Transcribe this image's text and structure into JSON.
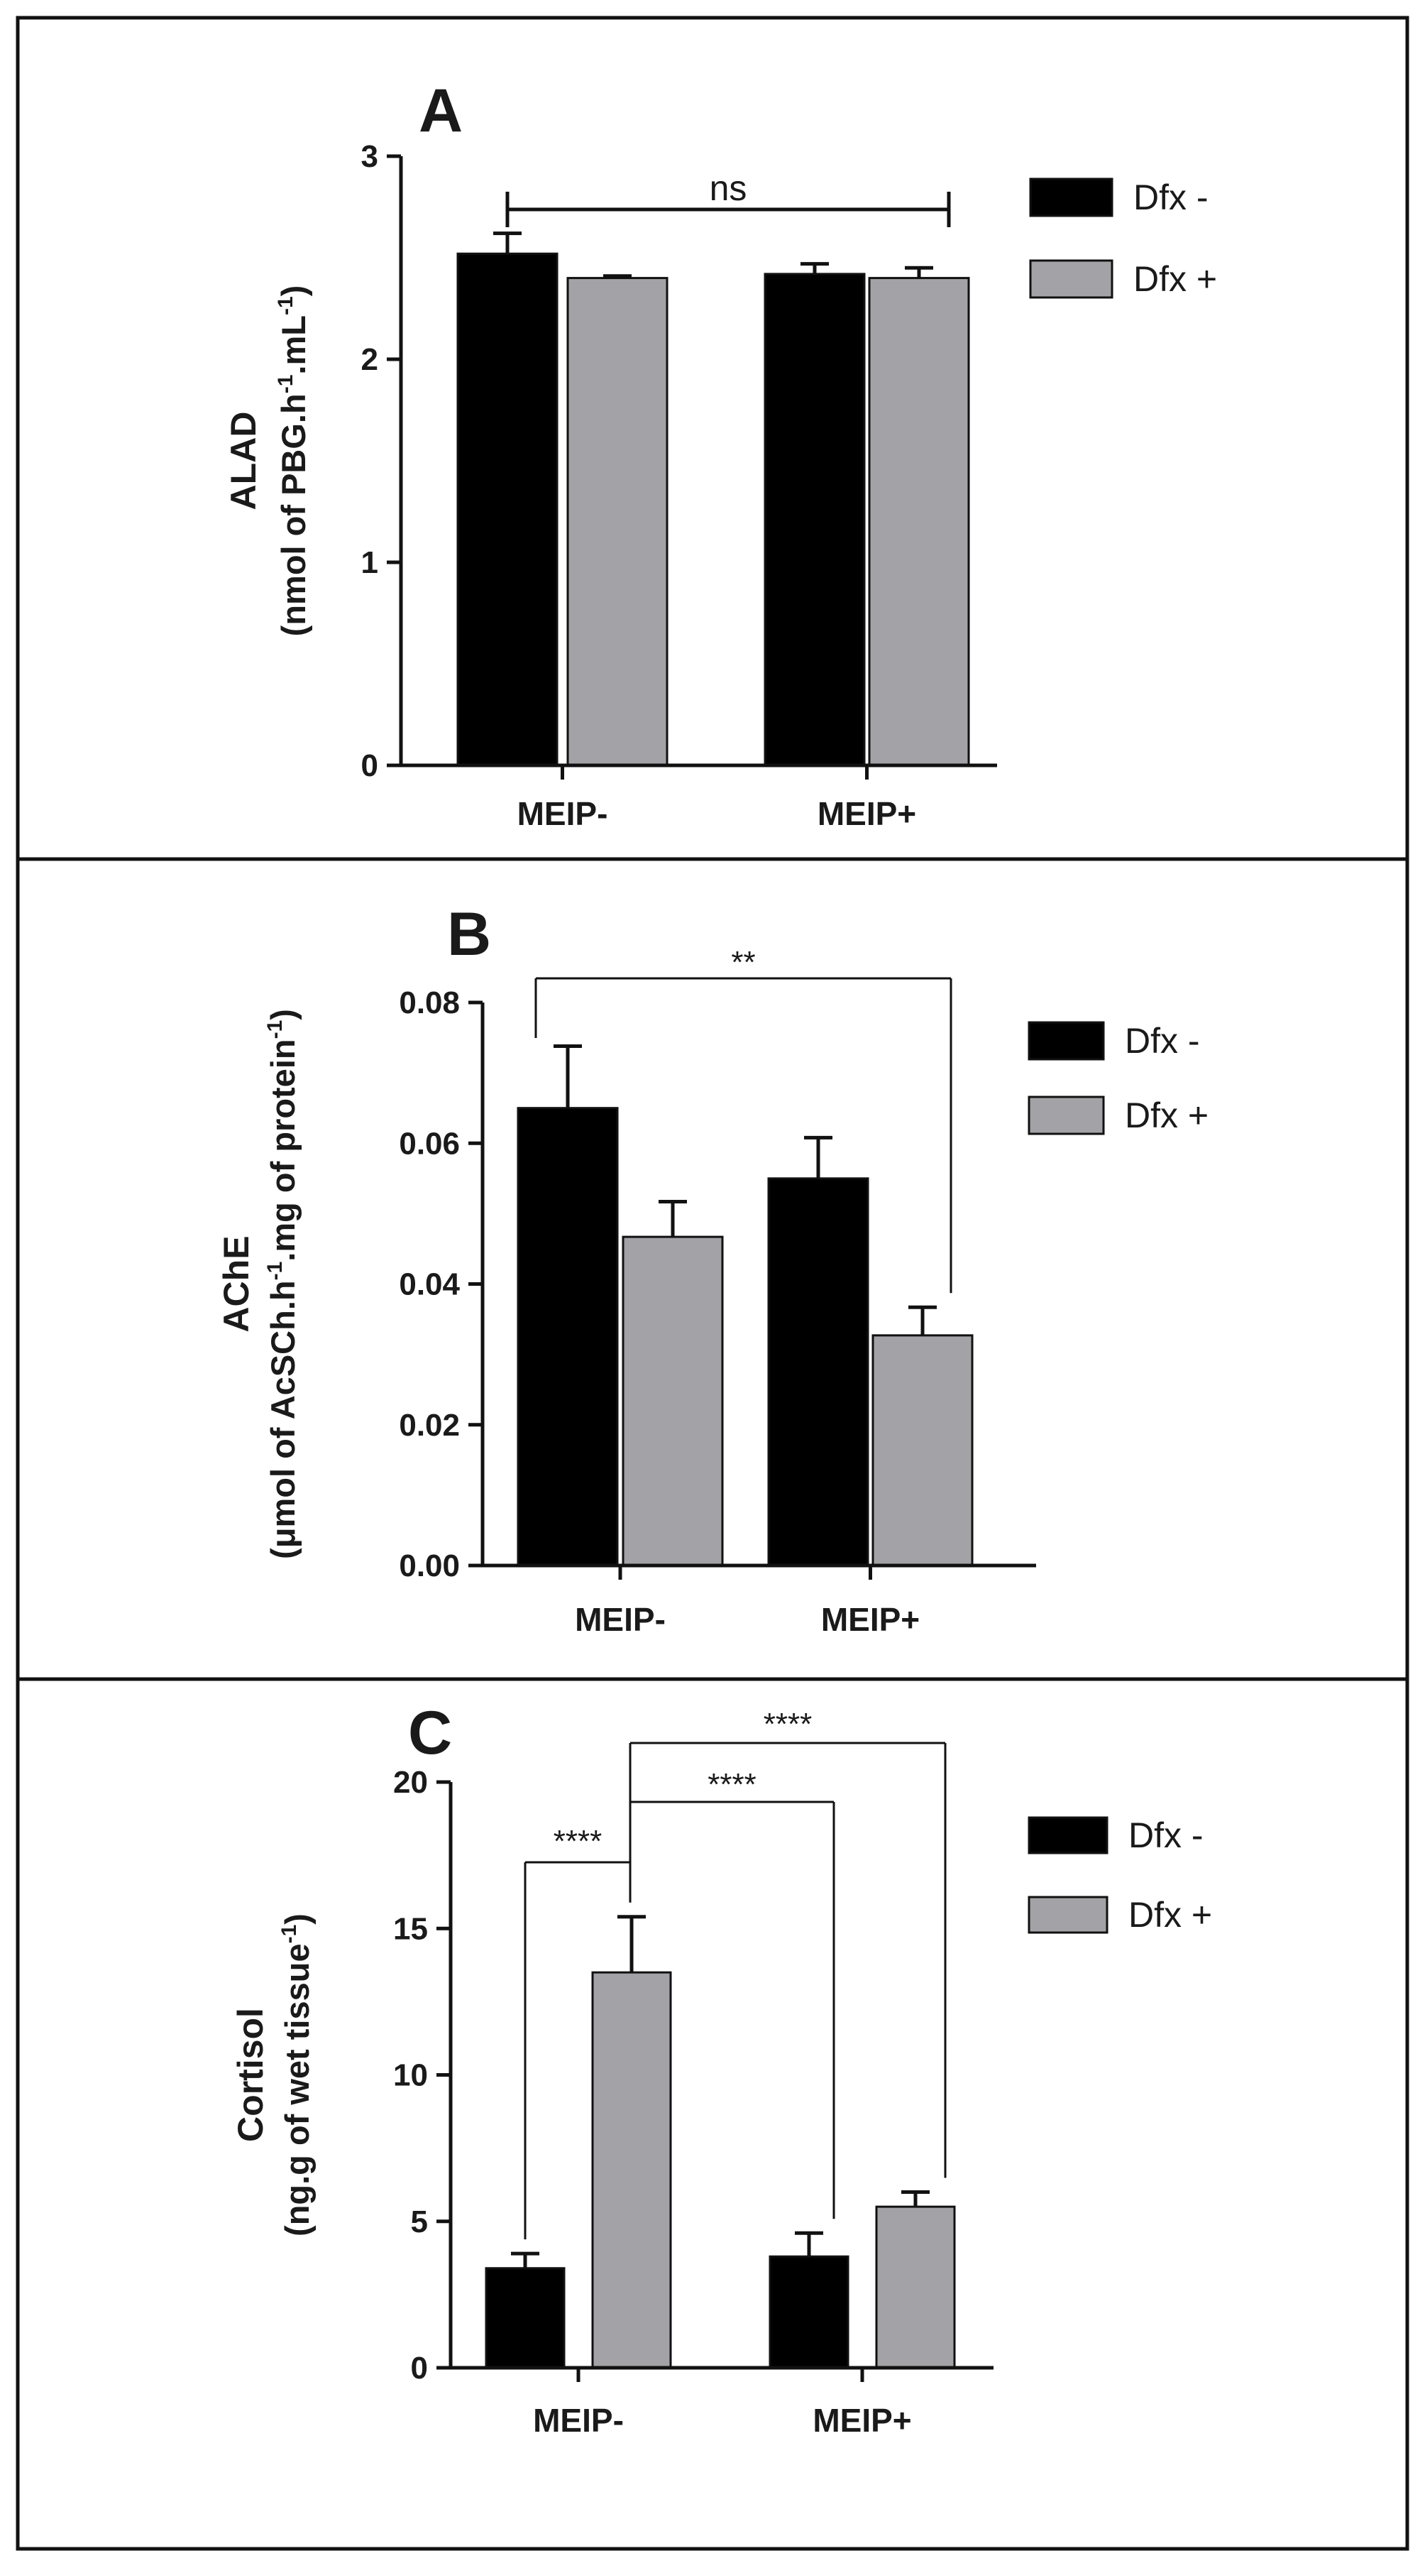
{
  "chart_data": [
    {
      "type": "bar",
      "panel": "A",
      "categories": [
        "MEIP-",
        "MEIP+"
      ],
      "series": [
        {
          "name": "Dfx -",
          "color": "#000000",
          "values": [
            2.52,
            2.42
          ],
          "errors": [
            0.1,
            0.05
          ]
        },
        {
          "name": "Dfx +",
          "color": "#a3a3a7",
          "values": [
            2.4,
            2.4
          ],
          "errors": [
            0.01,
            0.05
          ]
        }
      ],
      "ylabel_main": "ALAD",
      "ylabel_sub_parts": [
        "(nmol of PBG.h",
        "-1",
        ".mL",
        "-1",
        ")"
      ],
      "ylim": [
        0,
        3
      ],
      "yticks": [
        0,
        1,
        2,
        3
      ],
      "ytick_labels": [
        "0",
        "1",
        "2",
        "3"
      ],
      "legend_position": "top-right",
      "significance": [
        {
          "label": "ns",
          "from": "MEIP- Dfx -",
          "to": "MEIP+ Dfx +"
        }
      ]
    },
    {
      "type": "bar",
      "panel": "B",
      "categories": [
        "MEIP-",
        "MEIP+"
      ],
      "series": [
        {
          "name": "Dfx -",
          "color": "#000000",
          "values": [
            0.065,
            0.055
          ],
          "errors": [
            0.0088,
            0.0058
          ]
        },
        {
          "name": "Dfx +",
          "color": "#a3a3a7",
          "values": [
            0.0467,
            0.0327
          ],
          "errors": [
            0.005,
            0.004
          ]
        }
      ],
      "ylabel_main": "AChE",
      "ylabel_sub_parts": [
        "(μmol of AcSCh.h",
        "-1",
        ".mg of protein",
        "-1",
        ")"
      ],
      "ylim": [
        0,
        0.08
      ],
      "yticks": [
        0,
        0.02,
        0.04,
        0.06,
        0.08
      ],
      "ytick_labels": [
        "0.00",
        "0.02",
        "0.04",
        "0.06",
        "0.08"
      ],
      "legend_position": "top-right",
      "significance": [
        {
          "label": "**",
          "from": "MEIP- Dfx -",
          "to": "MEIP+ Dfx +"
        }
      ]
    },
    {
      "type": "bar",
      "panel": "C",
      "categories": [
        "MEIP-",
        "MEIP+"
      ],
      "series": [
        {
          "name": "Dfx -",
          "color": "#000000",
          "values": [
            3.4,
            3.8
          ],
          "errors": [
            0.5,
            0.8
          ]
        },
        {
          "name": "Dfx +",
          "color": "#a3a3a7",
          "values": [
            13.5,
            5.5
          ],
          "errors": [
            1.9,
            0.5
          ]
        }
      ],
      "ylabel_main": "Cortisol",
      "ylabel_sub_parts": [
        "(ng.g of wet tissue",
        "-1",
        ")"
      ],
      "ylim": [
        0,
        20
      ],
      "yticks": [
        0,
        5,
        10,
        15,
        20
      ],
      "ytick_labels": [
        "0",
        "5",
        "10",
        "15",
        "20"
      ],
      "legend_position": "top-right",
      "significance": [
        {
          "label": "****",
          "from": "MEIP- Dfx -",
          "to": "MEIP- Dfx +"
        },
        {
          "label": "****",
          "from": "MEIP- Dfx +",
          "to": "MEIP+ Dfx -"
        },
        {
          "label": "****",
          "from": "MEIP- Dfx +",
          "to": "MEIP+ Dfx +"
        }
      ]
    }
  ]
}
